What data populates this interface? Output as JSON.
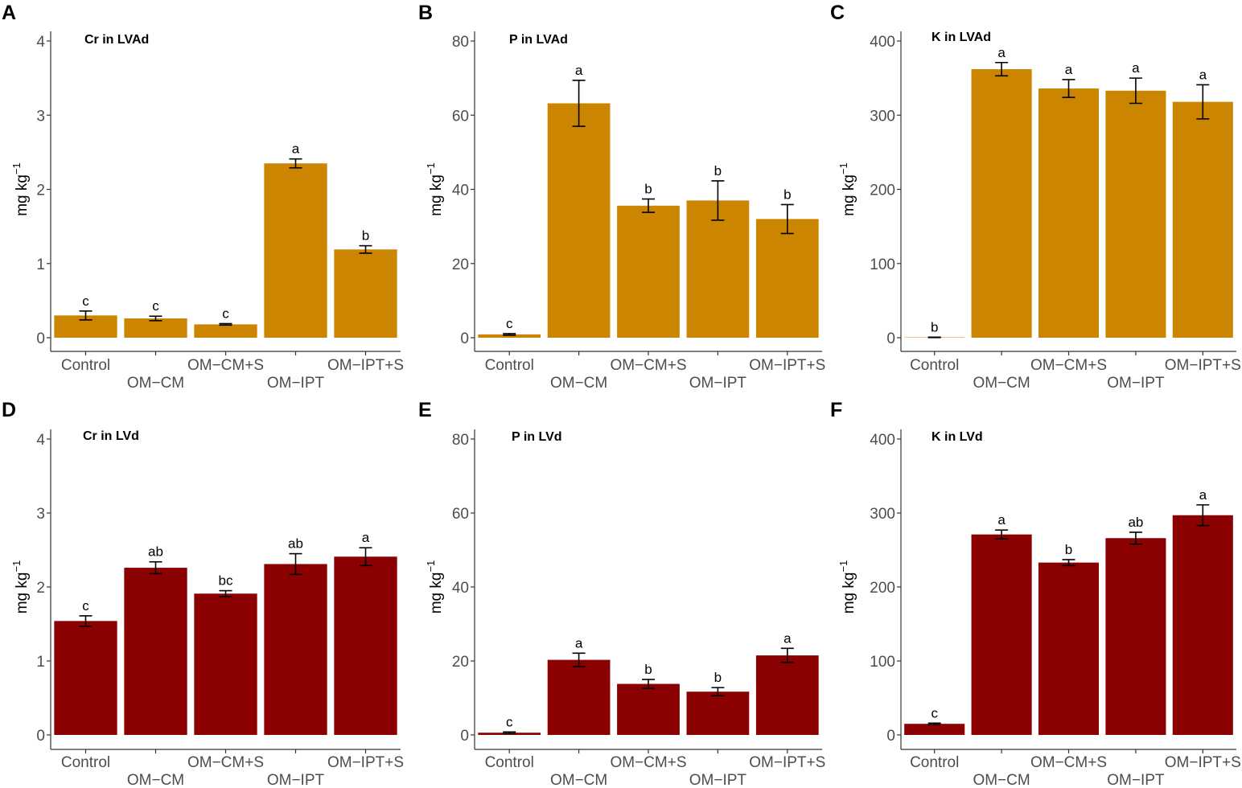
{
  "colors": {
    "top_row": "#cc8500",
    "bottom_row": "#8b0000",
    "axis": "#333333",
    "tick_text": "#4d4d4d"
  },
  "chart_data": [
    {
      "letter": "A",
      "type": "bar",
      "title": "Cr in LVAd",
      "ylabel": "mg kg",
      "ylabel_sup": "−1",
      "ylim": [
        0,
        4
      ],
      "yticks": [
        0,
        1,
        2,
        3,
        4
      ],
      "categories": [
        "Control",
        "OM−CM",
        "OM−CM+S",
        "OM−IPT",
        "OM−IPT+S"
      ],
      "values": [
        0.3,
        0.26,
        0.18,
        2.35,
        1.19
      ],
      "errors": [
        0.06,
        0.03,
        0.01,
        0.06,
        0.05
      ],
      "labels": [
        "c",
        "c",
        "c",
        "a",
        "b"
      ],
      "color": "#cc8500"
    },
    {
      "letter": "B",
      "type": "bar",
      "title": "P in LVAd",
      "ylabel": "mg kg",
      "ylabel_sup": "−1",
      "ylim": [
        0,
        80
      ],
      "yticks": [
        0,
        20,
        40,
        60,
        80
      ],
      "categories": [
        "Control",
        "OM−CM",
        "OM−CM+S",
        "OM−IPT",
        "OM−IPT+S"
      ],
      "values": [
        0.9,
        63.2,
        35.6,
        37.0,
        32.0
      ],
      "errors": [
        0.2,
        6.2,
        1.8,
        5.3,
        3.9
      ],
      "labels": [
        "c",
        "a",
        "b",
        "b",
        "b"
      ],
      "color": "#cc8500"
    },
    {
      "letter": "C",
      "type": "bar",
      "title": "K in LVAd",
      "ylabel": "mg kg",
      "ylabel_sup": "−1",
      "ylim": [
        0,
        400
      ],
      "yticks": [
        0,
        100,
        200,
        300,
        400
      ],
      "categories": [
        "Control",
        "OM−CM",
        "OM−CM+S",
        "OM−IPT",
        "OM−IPT+S"
      ],
      "values": [
        0.5,
        362,
        336,
        333,
        318
      ],
      "errors": [
        0.3,
        9,
        12,
        17,
        23
      ],
      "labels": [
        "b",
        "a",
        "a",
        "a",
        "a"
      ],
      "color": "#cc8500"
    },
    {
      "letter": "D",
      "type": "bar",
      "title": "Cr in LVd",
      "ylabel": "mg kg",
      "ylabel_sup": "−1",
      "ylim": [
        0,
        4
      ],
      "yticks": [
        0,
        1,
        2,
        3,
        4
      ],
      "categories": [
        "Control",
        "OM−CM",
        "OM−CM+S",
        "OM−IPT",
        "OM−IPT+S"
      ],
      "values": [
        1.54,
        2.26,
        1.91,
        2.31,
        2.41
      ],
      "errors": [
        0.07,
        0.08,
        0.04,
        0.14,
        0.12
      ],
      "labels": [
        "c",
        "ab",
        "bc",
        "ab",
        "a"
      ],
      "color": "#8b0000"
    },
    {
      "letter": "E",
      "type": "bar",
      "title": "P in LVd",
      "ylabel": "mg kg",
      "ylabel_sup": "−1",
      "ylim": [
        0,
        80
      ],
      "yticks": [
        0,
        20,
        40,
        60,
        80
      ],
      "categories": [
        "Control",
        "OM−CM",
        "OM−CM+S",
        "OM−IPT",
        "OM−IPT+S"
      ],
      "values": [
        0.6,
        20.3,
        13.8,
        11.7,
        21.5
      ],
      "errors": [
        0.2,
        1.8,
        1.2,
        1.1,
        1.9
      ],
      "labels": [
        "c",
        "a",
        "b",
        "b",
        "a"
      ],
      "color": "#8b0000"
    },
    {
      "letter": "F",
      "type": "bar",
      "title": "K in LVd",
      "ylabel": "mg kg",
      "ylabel_sup": "−1",
      "ylim": [
        0,
        400
      ],
      "yticks": [
        0,
        100,
        200,
        300,
        400
      ],
      "categories": [
        "Control",
        "OM−CM",
        "OM−CM+S",
        "OM−IPT",
        "OM−IPT+S"
      ],
      "values": [
        15,
        271,
        233,
        266,
        297
      ],
      "errors": [
        1,
        6,
        4,
        8,
        14
      ],
      "labels": [
        "c",
        "a",
        "b",
        "ab",
        "a"
      ],
      "color": "#8b0000"
    }
  ]
}
